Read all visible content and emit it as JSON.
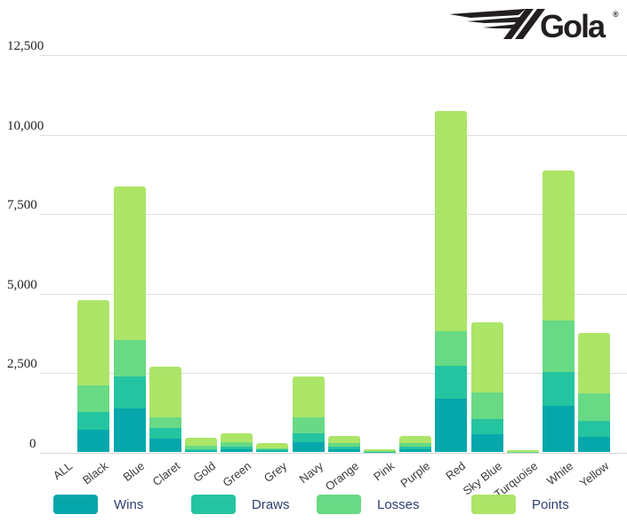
{
  "logo": {
    "brand": "Gola",
    "registered_mark": "®",
    "color": "#231f20",
    "icon": "wing-swoosh"
  },
  "chart_data": {
    "type": "bar",
    "stacked": true,
    "title": "",
    "xlabel": "",
    "ylabel": "",
    "categories": [
      "ALL",
      "Black",
      "Blue",
      "Claret",
      "Gold",
      "Green",
      "Grey",
      "Navy",
      "Orange",
      "Pink",
      "Purple",
      "Red",
      "Sky Blue",
      "Turquoise",
      "White",
      "Yellow"
    ],
    "series": [
      {
        "name": "Wins",
        "color": "#06a7ab",
        "values": [
          0,
          700,
          1370,
          420,
          50,
          90,
          45,
          330,
          85,
          10,
          85,
          1700,
          580,
          5,
          1460,
          475
        ]
      },
      {
        "name": "Draws",
        "color": "#25c4a0",
        "values": [
          0,
          580,
          1020,
          340,
          50,
          90,
          40,
          280,
          85,
          10,
          85,
          1020,
          465,
          5,
          1070,
          510
        ]
      },
      {
        "name": "Losses",
        "color": "#68d985",
        "values": [
          0,
          840,
          1140,
          330,
          110,
          140,
          40,
          480,
          135,
          10,
          135,
          1080,
          840,
          10,
          1610,
          865
        ]
      },
      {
        "name": "Points",
        "color": "#ace567",
        "values": [
          0,
          2680,
          4840,
          1610,
          260,
          280,
          165,
          1300,
          220,
          60,
          220,
          6950,
          2205,
          50,
          4730,
          1920
        ]
      }
    ],
    "ylim": [
      0,
      12500
    ],
    "yticks": [
      0,
      2500,
      5000,
      7500,
      10000,
      12500
    ],
    "ytick_labels": [
      "0",
      "2,500",
      "5,000",
      "7,500",
      "10,000",
      "12,500"
    ],
    "grid": "horizontal",
    "legend_position": "bottom",
    "legend_text_color": "#2e3f6e"
  }
}
